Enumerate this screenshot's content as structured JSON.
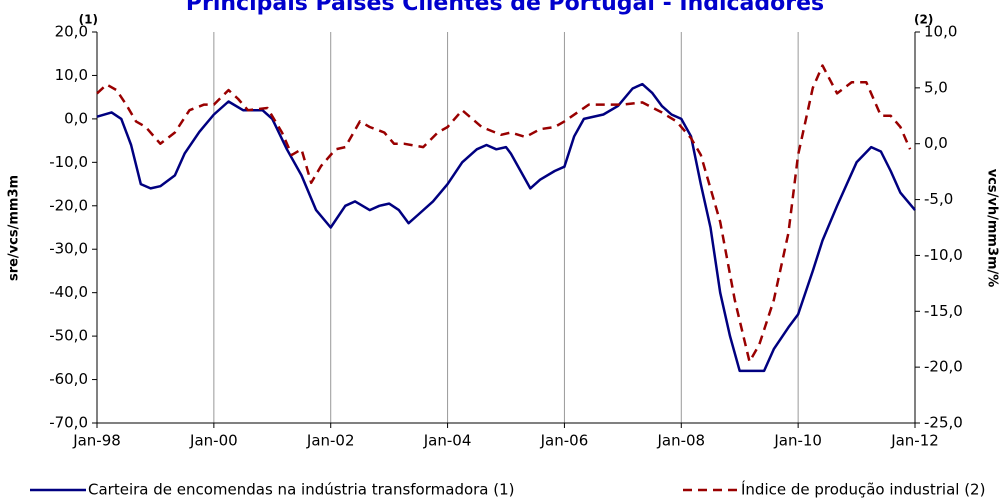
{
  "chart_data": {
    "type": "line",
    "title": "Principais Países Clientes de Portugal - Indicadores",
    "y_label": "sre/vcs/mm3m",
    "y2_label": "vcs/vh/mm3m/%",
    "y_marker": "(1)",
    "y2_marker": "(2)",
    "grid": "x",
    "xlim": [
      "1998-01",
      "2012-01"
    ],
    "xticks": [
      {
        "value": "1998-01",
        "label": "Jan-98"
      },
      {
        "value": "2000-01",
        "label": "Jan-00"
      },
      {
        "value": "2002-01",
        "label": "Jan-02"
      },
      {
        "value": "2004-01",
        "label": "Jan-04"
      },
      {
        "value": "2006-01",
        "label": "Jan-06"
      },
      {
        "value": "2008-01",
        "label": "Jan-08"
      },
      {
        "value": "2010-01",
        "label": "Jan-10"
      },
      {
        "value": "2012-01",
        "label": "Jan-12"
      }
    ],
    "ylim": [
      -70,
      20
    ],
    "yticks": [
      {
        "value": 20,
        "label": "20,0"
      },
      {
        "value": 10,
        "label": "10,0"
      },
      {
        "value": 0,
        "label": "0,0"
      },
      {
        "value": -10,
        "label": "-10,0"
      },
      {
        "value": -20,
        "label": "-20,0"
      },
      {
        "value": -30,
        "label": "-30,0"
      },
      {
        "value": -40,
        "label": "-40,0"
      },
      {
        "value": -50,
        "label": "-50,0"
      },
      {
        "value": -60,
        "label": "-60,0"
      },
      {
        "value": -70,
        "label": "-70,0"
      }
    ],
    "y2lim": [
      -25,
      10
    ],
    "y2ticks": [
      {
        "value": 10,
        "label": "10,0"
      },
      {
        "value": 5,
        "label": "5,0"
      },
      {
        "value": 0,
        "label": "0,0"
      },
      {
        "value": -5,
        "label": "-5,0"
      },
      {
        "value": -10,
        "label": "-10,0"
      },
      {
        "value": -15,
        "label": "-15,0"
      },
      {
        "value": -20,
        "label": "-20,0"
      },
      {
        "value": -25,
        "label": "-25,0"
      }
    ],
    "series": [
      {
        "name": "Carteira de encomendas na indústria transformadora (1)",
        "color": "#000080",
        "dash": false,
        "x": [
          "1998-01",
          "1998-04",
          "1998-06",
          "1998-08",
          "1998-10",
          "1998-12",
          "1999-02",
          "1999-05",
          "1999-07",
          "1999-10",
          "2000-01",
          "2000-04",
          "2000-07",
          "2000-11",
          "2001-01",
          "2001-04",
          "2001-07",
          "2001-10",
          "2002-01",
          "2002-04",
          "2002-06",
          "2002-09",
          "2002-11",
          "2003-01",
          "2003-03",
          "2003-05",
          "2003-07",
          "2003-10",
          "2004-01",
          "2004-04",
          "2004-07",
          "2004-09",
          "2004-11",
          "2005-01",
          "2005-02",
          "2005-04",
          "2005-06",
          "2005-08",
          "2005-11",
          "2006-01",
          "2006-03",
          "2006-05",
          "2006-09",
          "2006-12",
          "2007-03",
          "2007-05",
          "2007-07",
          "2007-09",
          "2007-11",
          "2008-01",
          "2008-03",
          "2008-05",
          "2008-07",
          "2008-09",
          "2008-11",
          "2009-01",
          "2009-03",
          "2009-06",
          "2009-08",
          "2009-11",
          "2010-01",
          "2010-04",
          "2010-06",
          "2010-09",
          "2010-11",
          "2011-01",
          "2011-04",
          "2011-06",
          "2011-08",
          "2011-10",
          "2012-01"
        ],
        "values": [
          0.5,
          1.5,
          0,
          -6,
          -15,
          -16,
          -15.5,
          -13,
          -8,
          -3,
          1,
          4,
          2,
          2,
          0,
          -7,
          -13,
          -21,
          -25,
          -20,
          -19,
          -21,
          -20,
          -19.5,
          -21,
          -24,
          -22,
          -19,
          -15,
          -10,
          -7,
          -6,
          -7,
          -6.5,
          -8,
          -12,
          -16,
          -14,
          -12,
          -11,
          -4,
          0,
          1,
          3,
          7,
          8,
          6,
          3,
          1,
          0,
          -4,
          -15,
          -25,
          -40,
          -50,
          -58,
          -58,
          -58,
          -53,
          -48,
          -45,
          -35,
          -28,
          -20,
          -15,
          -10,
          -6.5,
          -7.5,
          -12,
          -17,
          -21
        ]
      },
      {
        "name": "Índice de produção industrial (2)",
        "color": "#990000",
        "dash": true,
        "axis": "y2",
        "x": [
          "1998-01",
          "1998-03",
          "1998-05",
          "1998-07",
          "1998-09",
          "1998-11",
          "1999-02",
          "1999-05",
          "1999-08",
          "1999-11",
          "2000-01",
          "2000-04",
          "2000-06",
          "2000-08",
          "2000-12",
          "2001-03",
          "2001-05",
          "2001-07",
          "2001-09",
          "2001-11",
          "2002-02",
          "2002-04",
          "2002-07",
          "2002-09",
          "2002-12",
          "2003-02",
          "2003-04",
          "2003-08",
          "2003-11",
          "2004-01",
          "2004-04",
          "2004-08",
          "2004-12",
          "2005-02",
          "2005-05",
          "2005-08",
          "2005-11",
          "2006-01",
          "2006-06",
          "2006-09",
          "2007-01",
          "2007-05",
          "2007-09",
          "2007-12",
          "2008-03",
          "2008-05",
          "2008-07",
          "2008-09",
          "2008-12",
          "2009-03",
          "2009-05",
          "2009-08",
          "2009-11",
          "2010-01",
          "2010-04",
          "2010-06",
          "2010-09",
          "2010-12",
          "2011-03",
          "2011-06",
          "2011-08",
          "2011-10",
          "2011-12"
        ],
        "values": [
          4.5,
          5.3,
          4.8,
          3.5,
          2,
          1.5,
          0,
          1,
          3,
          3.5,
          3.5,
          4.8,
          4,
          3,
          3.2,
          1,
          -1,
          -0.5,
          -3.5,
          -2,
          -0.5,
          -0.3,
          2,
          1.5,
          1,
          0,
          0,
          -0.3,
          1,
          1.5,
          3,
          1.5,
          0.8,
          1,
          0.6,
          1.3,
          1.5,
          2,
          3.5,
          3.5,
          3.5,
          3.7,
          2.8,
          2,
          0.5,
          -1,
          -4,
          -7,
          -14,
          -19.5,
          -18,
          -14,
          -8,
          -1,
          5,
          7,
          4.5,
          5.5,
          5.5,
          2.5,
          2.5,
          1.5,
          -0.5
        ]
      }
    ]
  }
}
